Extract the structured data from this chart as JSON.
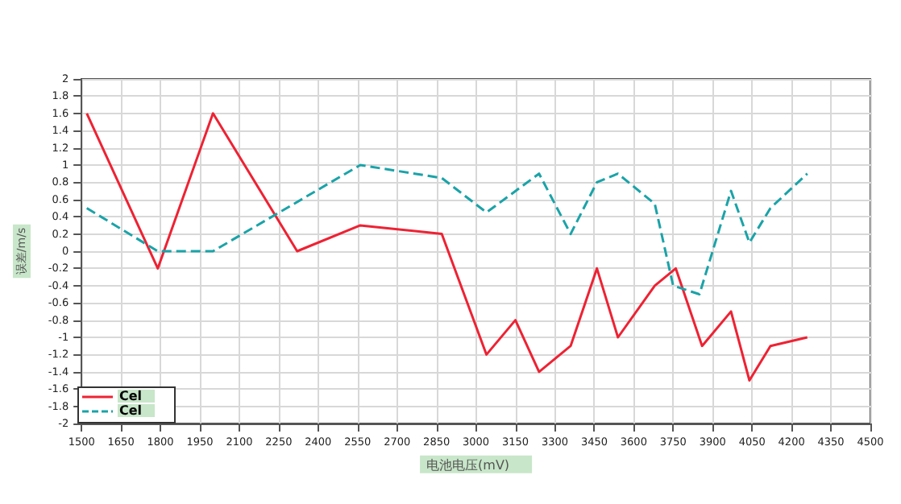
{
  "chart_data": {
    "type": "line",
    "xlabel": "电池电压(mV)",
    "ylabel": "误差/m/s",
    "xlim": [
      1500,
      4500
    ],
    "xticks": [
      1500,
      1650,
      1800,
      1950,
      2100,
      2250,
      2400,
      2550,
      2700,
      2850,
      3000,
      3150,
      3300,
      3450,
      3600,
      3750,
      3900,
      4050,
      4200,
      4350,
      4500
    ],
    "ylim": [
      -2,
      2
    ],
    "yticks": [
      -2,
      -1.8,
      -1.6,
      -1.4,
      -1.2,
      -1,
      -0.8,
      -0.6,
      -0.4,
      -0.2,
      0,
      0.2,
      0.4,
      0.6,
      0.8,
      1,
      1.2,
      1.4,
      1.6,
      1.8,
      2
    ],
    "grid": true,
    "legend": "bottom left",
    "marker": "none",
    "series": [
      {
        "name": "Cel",
        "color": "#ee2233",
        "line_style": "solid",
        "x": [
          1520,
          1790,
          2000,
          2320,
          2560,
          2870,
          3040,
          3150,
          3240,
          3360,
          3460,
          3540,
          3680,
          3760,
          3860,
          3970,
          4040,
          4120,
          4260
        ],
        "values": [
          1.6,
          -0.2,
          1.6,
          0,
          0.3,
          0.2,
          -1.2,
          -0.8,
          -1.4,
          -1.1,
          -0.2,
          -1.0,
          -0.4,
          -0.2,
          -1.1,
          -0.7,
          -1.5,
          -1.1,
          -1.0
        ]
      },
      {
        "name": "Cel",
        "color": "#1aa3a8",
        "line_style": "dashed",
        "x": [
          1520,
          1790,
          2000,
          2560,
          2870,
          3040,
          3240,
          3360,
          3460,
          3540,
          3680,
          3750,
          3850,
          3970,
          4040,
          4120,
          4260
        ],
        "values": [
          0.5,
          0,
          0,
          1.0,
          0.85,
          0.45,
          0.9,
          0.2,
          0.8,
          0.9,
          0.55,
          -0.4,
          -0.5,
          0.7,
          0.1,
          0.5,
          0.9
        ]
      }
    ]
  }
}
